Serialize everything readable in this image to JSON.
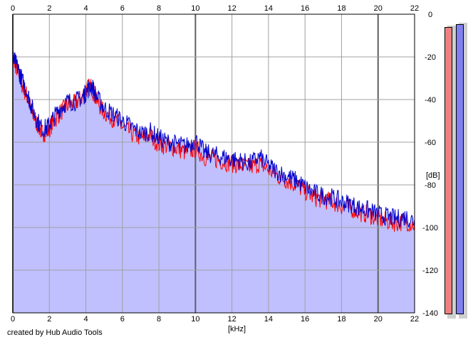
{
  "credit": "created by Hub Audio Tools",
  "colors": {
    "background": "#ffffff",
    "fill": "#c0c0ff",
    "left_channel": "#ff0000",
    "right_channel": "#0000cc",
    "grid": "#a0a0a0",
    "major_grid": "#808080",
    "meter_left": "#f08080",
    "meter_right": "#8080f0"
  },
  "meters": {
    "left_level": 0.98,
    "right_level": 0.99
  },
  "chart_data": {
    "type": "line",
    "xlabel": "[kHz]",
    "ylabel": "[dB]",
    "xlim": [
      0,
      22
    ],
    "ylim": [
      -140,
      0
    ],
    "x_ticks": [
      "0",
      "2",
      "4",
      "6",
      "8",
      "10",
      "12",
      "14",
      "16",
      "18",
      "20",
      "22"
    ],
    "y_ticks": [
      "0",
      "-20",
      "-40",
      "-60",
      "-80",
      "-100",
      "-120",
      "-140"
    ],
    "grid": true,
    "series": [
      {
        "color": "#ff0000",
        "x": [
          0,
          0.1,
          0.3,
          0.5,
          0.8,
          1.0,
          1.3,
          1.6,
          1.9,
          2.2,
          2.6,
          3.0,
          3.4,
          3.8,
          4.0,
          4.3,
          4.6,
          5.0,
          5.5,
          6.0,
          6.5,
          7.0,
          7.5,
          8.0,
          8.5,
          9.0,
          9.5,
          10.0,
          10.5,
          11.0,
          11.5,
          12.0,
          12.5,
          13.0,
          13.5,
          14.0,
          14.5,
          15.0,
          15.5,
          16.0,
          16.5,
          17.0,
          17.5,
          18.0,
          18.5,
          19.0,
          19.5,
          20.0,
          20.5,
          21.0,
          21.5,
          22.0
        ],
        "y": [
          -20,
          -22,
          -26,
          -32,
          -38,
          -44,
          -50,
          -55,
          -54,
          -50,
          -45,
          -42,
          -41,
          -38,
          -34,
          -33,
          -40,
          -45,
          -48,
          -52,
          -55,
          -57,
          -56,
          -60,
          -61,
          -62,
          -64,
          -62,
          -66,
          -67,
          -68,
          -69,
          -70,
          -71,
          -69,
          -72,
          -75,
          -77,
          -79,
          -82,
          -85,
          -86,
          -87,
          -89,
          -90,
          -92,
          -93,
          -95,
          -96,
          -97,
          -96,
          -98
        ]
      },
      {
        "color": "#0000cc",
        "x": [
          0,
          0.1,
          0.3,
          0.5,
          0.8,
          1.0,
          1.3,
          1.6,
          1.9,
          2.2,
          2.6,
          3.0,
          3.4,
          3.8,
          4.0,
          4.3,
          4.6,
          5.0,
          5.5,
          6.0,
          6.5,
          7.0,
          7.5,
          8.0,
          8.5,
          9.0,
          9.5,
          10.0,
          10.5,
          11.0,
          11.5,
          12.0,
          12.5,
          13.0,
          13.5,
          14.0,
          14.5,
          15.0,
          15.5,
          16.0,
          16.5,
          17.0,
          17.5,
          18.0,
          18.5,
          19.0,
          19.5,
          20.0,
          20.5,
          21.0,
          21.5,
          22.0
        ],
        "y": [
          -19,
          -21,
          -25,
          -30,
          -36,
          -42,
          -48,
          -53,
          -52,
          -48,
          -43,
          -40,
          -40,
          -38,
          -36,
          -32,
          -38,
          -43,
          -46,
          -49,
          -52,
          -55,
          -54,
          -57,
          -59,
          -60,
          -61,
          -58,
          -64,
          -65,
          -66,
          -67,
          -68,
          -69,
          -66,
          -70,
          -73,
          -75,
          -77,
          -80,
          -83,
          -84,
          -85,
          -87,
          -88,
          -90,
          -91,
          -93,
          -94,
          -95,
          -94,
          -96
        ]
      }
    ]
  }
}
